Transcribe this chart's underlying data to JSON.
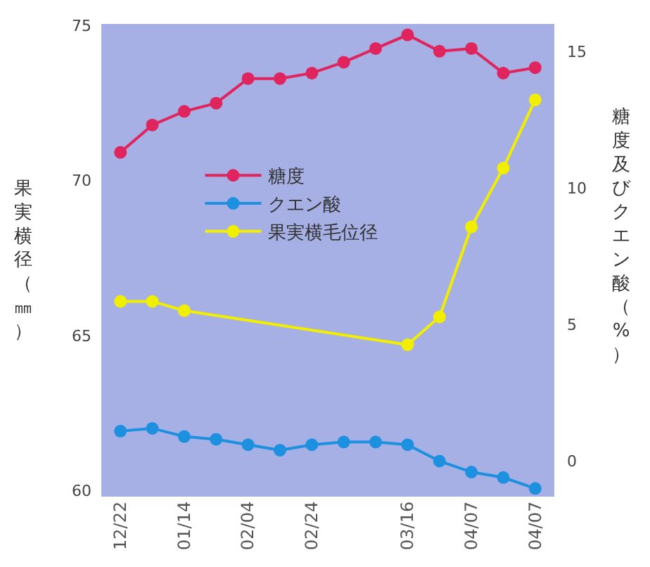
{
  "chart_data": {
    "type": "line",
    "ylabel": "果実横径（㎜）",
    "y2label": "糖度及びクエン酸（%）",
    "categories": [
      "12/22",
      null,
      "01/14",
      null,
      "02/04",
      null,
      "02/24",
      null,
      null,
      "03/16",
      null,
      "04/07",
      null,
      "04/07"
    ],
    "series": [
      {
        "name": "糖度",
        "color": "#e0245e",
        "axis": "y2",
        "values": [
          11.3,
          12.3,
          12.8,
          13.1,
          14.0,
          14.0,
          14.2,
          14.6,
          15.1,
          15.6,
          15.0,
          15.1,
          14.2,
          14.4
        ]
      },
      {
        "name": "クエン酸",
        "color": "#1e90e0",
        "axis": "y2",
        "values": [
          1.1,
          1.2,
          0.9,
          0.8,
          0.6,
          0.4,
          0.6,
          0.7,
          0.7,
          0.6,
          0.0,
          -0.4,
          -0.6,
          -1.0
        ]
      },
      {
        "name": "果実横毛位径",
        "color": "#f2ee00",
        "axis": "y",
        "values": [
          66.1,
          66.1,
          65.8,
          null,
          null,
          null,
          null,
          null,
          null,
          64.7,
          65.6,
          68.5,
          70.4,
          72.6
        ]
      }
    ],
    "ylim": [
      59.8,
      75.05
    ],
    "yticks": [
      60,
      65,
      70,
      75
    ],
    "y2lim": [
      -1.3,
      16
    ],
    "y2ticks": [
      0,
      5,
      10,
      15
    ],
    "grid": false,
    "legend": "center",
    "marker": "circle",
    "line_style": "solid"
  }
}
